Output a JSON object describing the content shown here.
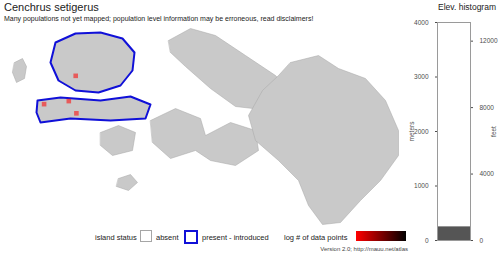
{
  "title": "Cenchrus setigerus",
  "subtitle": "Many populations not yet mapped; population level information may be erroneous, read disclaimers!",
  "caption": "Version 2.0; http://mauu.net/atlas",
  "map": {
    "islands": [
      {
        "status": "absent"
      },
      {
        "status": "present - introduced"
      },
      {
        "status": "absent"
      },
      {
        "status": "present - introduced"
      },
      {
        "status": "absent"
      },
      {
        "status": "absent"
      },
      {
        "status": "absent"
      },
      {
        "status": "absent"
      }
    ],
    "status_legend": {
      "title": "island status",
      "items": [
        {
          "label": "absent",
          "color": "#a6a6a6"
        },
        {
          "label": "present - introduced",
          "color": "#1010d8"
        }
      ]
    },
    "data_points": {
      "lon": [
        -159.64,
        -157.27,
        -157.14,
        -157.1
      ],
      "lat": [
        21.97,
        21.17,
        21.19,
        21.11
      ],
      "log_count": [
        0,
        0,
        0,
        0
      ]
    },
    "colorbar": {
      "title": "log # of data points",
      "range": [
        0,
        3
      ],
      "colors": [
        "#ff0000",
        "#000000"
      ]
    }
  },
  "chart_data": {
    "type": "histogram",
    "title": "Elev. histogram",
    "bins": [
      0,
      250
    ],
    "counts": [
      1
    ],
    "color": "#555555",
    "xlim": [
      0,
      1
    ],
    "ylim": [
      0,
      4000
    ],
    "yticks": [
      0,
      1000,
      2000,
      3000,
      4000
    ],
    "y_label": "meters",
    "y2lim": [
      0,
      13123
    ],
    "y2ticks": [
      0,
      4000,
      8000,
      12000
    ],
    "y2_label": "feet",
    "tick_labels": "y"
  }
}
